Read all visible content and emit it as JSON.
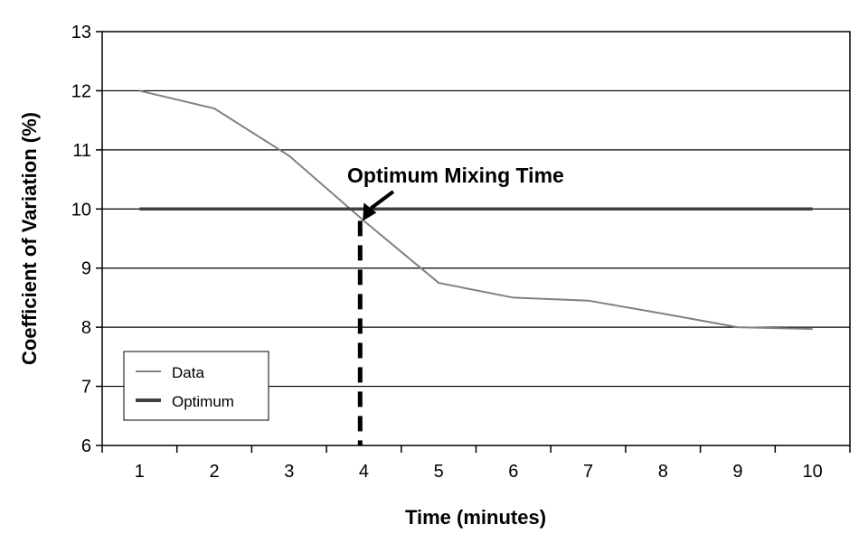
{
  "chart_data": {
    "type": "line",
    "title": "",
    "xlabel": "Time (minutes)",
    "ylabel": "Coefficient of Variation (%)",
    "categories": [
      "1",
      "2",
      "3",
      "4",
      "5",
      "6",
      "7",
      "8",
      "9",
      "10"
    ],
    "ylim": [
      6,
      13
    ],
    "yticks": [
      "6",
      "7",
      "8",
      "9",
      "10",
      "11",
      "12",
      "13"
    ],
    "grid": true,
    "series": [
      {
        "name": "Data",
        "color": "#808080",
        "values": [
          12.0,
          11.7,
          10.9,
          9.8,
          8.75,
          8.5,
          8.45,
          8.23,
          8.0,
          7.97
        ]
      },
      {
        "name": "Optimum",
        "color": "#404040",
        "values": [
          10,
          10,
          10,
          10,
          10,
          10,
          10,
          10,
          10,
          10
        ]
      }
    ],
    "annotation": {
      "text": "Optimum Mixing Time",
      "x": 3.95,
      "y": 9.8
    },
    "legend_placement": "bottom-left"
  }
}
